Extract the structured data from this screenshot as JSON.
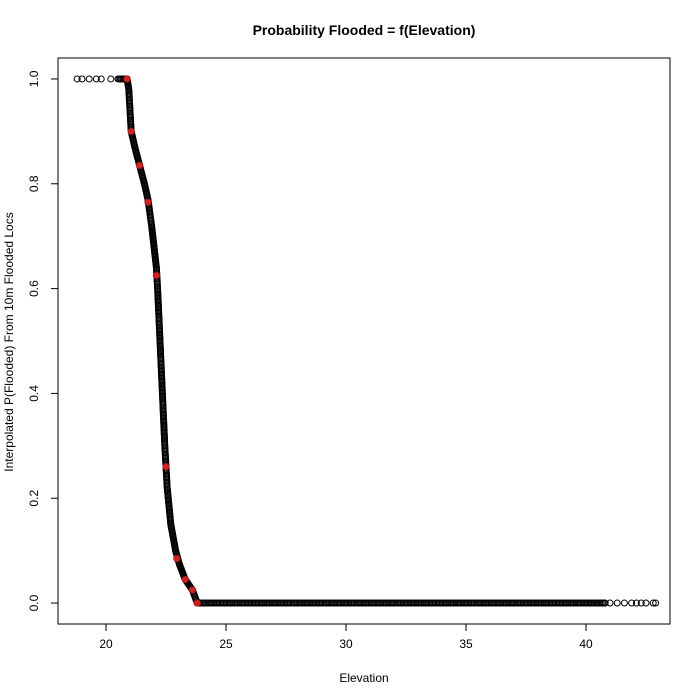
{
  "chart_data": {
    "type": "scatter",
    "title": "Probability Flooded = f(Elevation)",
    "xlabel": "Elevation",
    "ylabel": "Interpolated P(Flooded) From 10m Flooded Locs",
    "xlim": [
      18.0,
      43.5
    ],
    "ylim": [
      -0.04,
      1.04
    ],
    "x_ticks": [
      20,
      25,
      30,
      35,
      40
    ],
    "y_ticks": [
      0.0,
      0.2,
      0.4,
      0.6,
      0.8,
      1.0
    ],
    "grid": false,
    "series": [
      {
        "marker": "open-circle",
        "color": "#000000",
        "curve": [
          [
            18.8,
            1.0
          ],
          [
            19.0,
            1.0
          ],
          [
            19.3,
            1.0
          ],
          [
            19.6,
            1.0
          ],
          [
            19.8,
            1.0
          ],
          [
            20.2,
            1.0
          ],
          [
            20.5,
            1.0
          ],
          [
            20.6,
            1.0
          ],
          [
            20.7,
            1.0
          ],
          [
            20.8,
            1.0
          ],
          [
            20.88,
            1.0
          ],
          [
            20.95,
            0.98
          ],
          [
            21.0,
            0.94
          ],
          [
            21.05,
            0.9
          ],
          [
            21.2,
            0.87
          ],
          [
            21.4,
            0.835
          ],
          [
            21.6,
            0.8
          ],
          [
            21.75,
            0.77
          ],
          [
            21.9,
            0.72
          ],
          [
            22.0,
            0.68
          ],
          [
            22.1,
            0.64
          ],
          [
            22.15,
            0.6
          ],
          [
            22.25,
            0.5
          ],
          [
            22.35,
            0.4
          ],
          [
            22.45,
            0.3
          ],
          [
            22.55,
            0.22
          ],
          [
            22.7,
            0.15
          ],
          [
            22.9,
            0.1
          ],
          [
            23.05,
            0.075
          ],
          [
            23.3,
            0.045
          ],
          [
            23.6,
            0.025
          ],
          [
            23.8,
            0.0
          ],
          [
            24.2,
            0.0
          ],
          [
            30.0,
            0.0
          ],
          [
            35.0,
            0.0
          ],
          [
            40.0,
            0.0
          ],
          [
            40.8,
            0.0
          ]
        ],
        "tail": [
          [
            41.0,
            0.0
          ],
          [
            41.3,
            0.0
          ],
          [
            41.6,
            0.0
          ],
          [
            41.9,
            0.0
          ],
          [
            42.1,
            0.0
          ],
          [
            42.3,
            0.0
          ],
          [
            42.5,
            0.0
          ],
          [
            42.8,
            0.0
          ],
          [
            42.9,
            0.0
          ]
        ]
      },
      {
        "marker": "filled-circle",
        "color": "#d62020",
        "points": [
          [
            20.88,
            1.0
          ],
          [
            21.05,
            0.9
          ],
          [
            21.4,
            0.835
          ],
          [
            21.75,
            0.765
          ],
          [
            22.1,
            0.625
          ],
          [
            22.5,
            0.26
          ],
          [
            22.95,
            0.085
          ],
          [
            23.3,
            0.045
          ],
          [
            23.6,
            0.025
          ],
          [
            23.8,
            0.0
          ]
        ]
      }
    ]
  }
}
